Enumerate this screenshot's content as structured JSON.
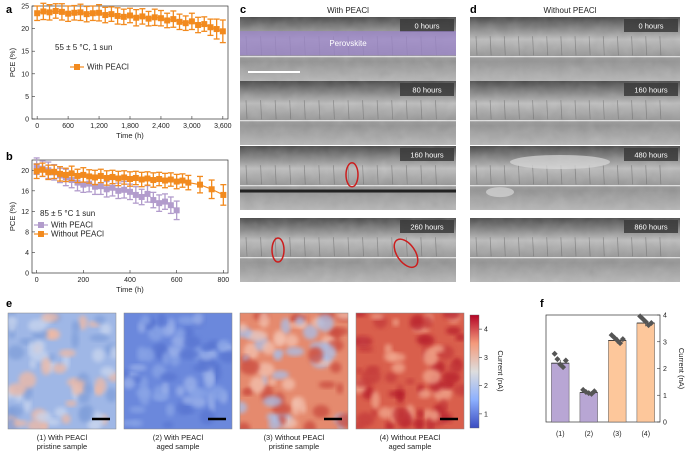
{
  "panel_labels": {
    "a": "a",
    "b": "b",
    "c": "c",
    "d": "d",
    "e": "e",
    "f": "f"
  },
  "colors": {
    "orange": "#f28a1e",
    "purple": "#b29ccc",
    "purple_bar": "#b8a6d4",
    "orange_bar": "#fdc79b",
    "perovskite": "#9b84c9",
    "circle": "#cc1e1e"
  },
  "chart_data": [
    {
      "type": "line",
      "panel": "a",
      "xlabel": "Time (h)",
      "ylabel": "PCE (%)",
      "xlim": [
        -100,
        3700
      ],
      "ylim": [
        0,
        25
      ],
      "xticks": [
        "0",
        "600",
        "1,200",
        "1,800",
        "2,400",
        "3,000",
        "3,600"
      ],
      "yticks": [
        "0",
        "5",
        "10",
        "15",
        "20",
        "25"
      ],
      "annotation": "55 ± 5 °C, 1 sun",
      "series": [
        {
          "name": "With PEACl",
          "x": [
            0,
            120,
            240,
            360,
            480,
            600,
            720,
            840,
            960,
            1080,
            1200,
            1320,
            1440,
            1560,
            1680,
            1800,
            1920,
            2040,
            2160,
            2280,
            2400,
            2520,
            2640,
            2760,
            2880,
            3000,
            3120,
            3240,
            3360,
            3480,
            3600
          ],
          "y": [
            23.4,
            23.8,
            23.6,
            23.9,
            23.7,
            23.3,
            23.5,
            23.6,
            23.2,
            23.4,
            23.5,
            23.0,
            23.2,
            22.8,
            22.6,
            22.9,
            22.4,
            22.7,
            22.2,
            22.5,
            22.3,
            21.8,
            22.1,
            21.5,
            21.2,
            21.6,
            20.8,
            21.0,
            20.3,
            19.9,
            19.4
          ],
          "err": [
            1.6,
            1.8,
            1.7,
            1.6,
            1.8,
            1.7,
            1.6,
            1.8,
            1.7,
            1.6,
            1.8,
            1.7,
            1.6,
            1.8,
            1.7,
            1.6,
            1.8,
            1.7,
            1.6,
            1.8,
            1.7,
            1.6,
            1.8,
            1.7,
            1.6,
            1.8,
            1.7,
            1.6,
            1.8,
            2.2,
            2.5
          ]
        }
      ]
    },
    {
      "type": "line",
      "panel": "b",
      "xlabel": "Time (h)",
      "ylabel": "PCE (%)",
      "xlim": [
        -20,
        820
      ],
      "ylim": [
        0,
        22
      ],
      "xticks": [
        "0",
        "200",
        "400",
        "600",
        "800"
      ],
      "yticks": [
        "0",
        "4",
        "8",
        "12",
        "16",
        "20"
      ],
      "annotation": "85 ± 5 °C 1 sun",
      "series": [
        {
          "name": "With PEACl",
          "x": [
            0,
            25,
            50,
            75,
            100,
            125,
            150,
            175,
            200,
            225,
            250,
            275,
            300,
            325,
            350,
            375,
            400,
            425,
            450,
            475,
            500,
            525,
            550,
            575,
            600
          ],
          "y": [
            20.8,
            20.3,
            20.0,
            19.6,
            19.0,
            18.6,
            18.1,
            17.6,
            17.2,
            17.4,
            16.8,
            16.9,
            16.3,
            16.6,
            16.0,
            16.2,
            15.8,
            15.2,
            14.8,
            15.4,
            14.2,
            13.6,
            13.9,
            13.2,
            12.2
          ],
          "err": [
            1.6,
            1.5,
            1.6,
            1.5,
            1.4,
            1.6,
            1.5,
            1.6,
            1.5,
            1.6,
            1.5,
            1.6,
            1.5,
            1.6,
            1.5,
            1.6,
            1.5,
            1.6,
            1.5,
            1.6,
            1.5,
            1.6,
            1.5,
            1.6,
            1.8
          ]
        },
        {
          "name": "Without PEACl",
          "x": [
            0,
            25,
            50,
            75,
            100,
            125,
            150,
            175,
            200,
            225,
            250,
            275,
            300,
            325,
            350,
            375,
            400,
            425,
            450,
            475,
            500,
            525,
            550,
            575,
            600,
            625,
            650,
            700,
            750,
            800
          ],
          "y": [
            19.8,
            20.1,
            19.6,
            19.7,
            19.3,
            19.1,
            19.4,
            18.9,
            19.1,
            18.8,
            18.6,
            18.9,
            18.5,
            18.7,
            18.4,
            18.6,
            18.3,
            18.5,
            18.2,
            18.4,
            18.1,
            18.3,
            18.0,
            18.2,
            17.8,
            18.0,
            17.6,
            17.2,
            16.3,
            15.2
          ],
          "err": [
            1.4,
            1.3,
            1.4,
            1.3,
            1.4,
            1.3,
            1.4,
            1.3,
            1.4,
            1.3,
            1.4,
            1.3,
            1.4,
            1.3,
            1.4,
            1.3,
            1.4,
            1.3,
            1.4,
            1.3,
            1.4,
            1.3,
            1.4,
            1.3,
            1.4,
            1.3,
            1.4,
            1.6,
            1.8,
            2.0
          ]
        }
      ]
    },
    {
      "type": "bar",
      "panel": "f",
      "ylabel": "Current (nA)",
      "categories": [
        "(1)",
        "(2)",
        "(3)",
        "(4)"
      ],
      "values": [
        2.2,
        1.1,
        3.05,
        3.7
      ],
      "err": [
        0.12,
        0.05,
        0.12,
        0.12
      ],
      "points": [
        [
          2.55,
          2.35,
          2.15,
          2.05,
          2.3
        ],
        [
          1.2,
          1.12,
          1.08,
          1.05,
          1.15
        ],
        [
          3.25,
          3.15,
          3.05,
          2.95,
          3.1
        ],
        [
          3.95,
          3.85,
          3.75,
          3.62,
          3.7
        ]
      ],
      "ylim": [
        0,
        4
      ],
      "yticks": [
        "0",
        "1",
        "2",
        "3",
        "4"
      ]
    }
  ],
  "panel_c": {
    "title": "With PEACl",
    "perovskite_label": "Perovskite",
    "tags": [
      "0 hours",
      "80 hours",
      "160 hours",
      "260 hours"
    ]
  },
  "panel_d": {
    "title": "Without PEACl",
    "tags": [
      "0 hours",
      "160 hours",
      "480 hours",
      "860 hours"
    ]
  },
  "panel_e": {
    "captions": [
      [
        "(1) With PEACl",
        "pristine sample"
      ],
      [
        "(2) With PEACl",
        "aged sample"
      ],
      [
        "(3) Without PEACl",
        "pristine sample"
      ],
      [
        "(4) Without PEACl",
        "aged sample"
      ]
    ],
    "colorbar_label": "Current (nA)",
    "colorbar_ticks": [
      "4",
      "3",
      "2",
      "1"
    ]
  }
}
